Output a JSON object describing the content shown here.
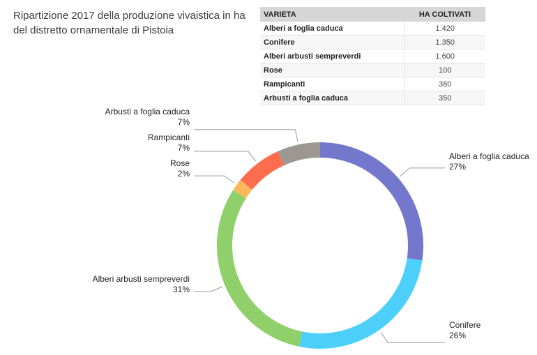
{
  "chart_data": {
    "type": "pie",
    "variant": "donut",
    "title_lines": [
      "Ripartizione 2017 della produzione vivaistica in ha",
      "del distretto ornamentale di Pistoia"
    ],
    "slices": [
      {
        "label": "Alberi a foglia caduca",
        "value": 1420,
        "value_text": "1.420",
        "percent_text": "27%",
        "color": "#7478cc"
      },
      {
        "label": "Conifere",
        "value": 1350,
        "value_text": "1.350",
        "percent_text": "26%",
        "color": "#4cd0fb"
      },
      {
        "label": "Alberi arbusti sempreverdi",
        "value": 1600,
        "value_text": "1.600",
        "percent_text": "31%",
        "color": "#8fd06a"
      },
      {
        "label": "Rose",
        "value": 100,
        "value_text": "100",
        "percent_text": "2%",
        "color": "#fbb85a"
      },
      {
        "label": "Rampicanti",
        "value": 380,
        "value_text": "380",
        "percent_text": "7%",
        "color": "#fe6e4e"
      },
      {
        "label": "Arbusti a foglia caduca",
        "value": 350,
        "value_text": "350",
        "percent_text": "7%",
        "color": "#9d9791"
      }
    ],
    "table_headers": [
      "VARIETA",
      "HA COLTIVATI"
    ],
    "leader_color": "#999999"
  }
}
